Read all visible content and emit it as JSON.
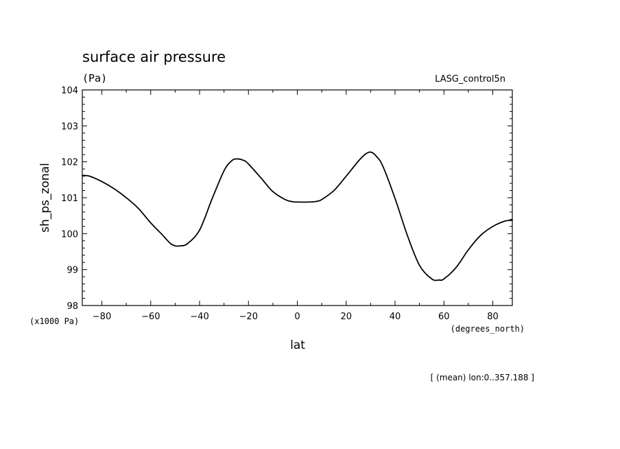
{
  "chart_data": {
    "type": "line",
    "title": "surface air pressure",
    "units": "(Pa)",
    "dataset": "LASG_control5n",
    "xlabel": "lat",
    "ylabel": "sh_ps_zonal",
    "y_scale_note": "(x1000 Pa)",
    "x_unit_note": "(degrees_north)",
    "footnote": "[ (mean) lon:0..357.188 ]",
    "xlim": [
      -88,
      88
    ],
    "ylim": [
      98,
      104
    ],
    "x_ticks": [
      -80,
      -60,
      -40,
      -20,
      0,
      20,
      40,
      60,
      80
    ],
    "y_ticks": [
      98,
      99,
      100,
      101,
      102,
      103,
      104
    ],
    "grid": false,
    "series": [
      {
        "x": [
          -88,
          -85,
          -80,
          -75,
          -70,
          -65,
          -60,
          -55,
          -52,
          -50,
          -48,
          -45,
          -40,
          -35,
          -30,
          -27,
          -25,
          -22,
          -20,
          -15,
          -10,
          -5,
          -2,
          0,
          5,
          8,
          10,
          15,
          20,
          25,
          28,
          30,
          32,
          35,
          40,
          45,
          50,
          55,
          58,
          60,
          65,
          70,
          75,
          80,
          85,
          88
        ],
        "y": [
          101.62,
          101.6,
          101.45,
          101.25,
          101.0,
          100.7,
          100.3,
          99.95,
          99.73,
          99.66,
          99.66,
          99.72,
          100.1,
          100.95,
          101.75,
          102.02,
          102.08,
          102.04,
          101.94,
          101.56,
          101.17,
          100.95,
          100.89,
          100.88,
          100.88,
          100.9,
          100.95,
          101.2,
          101.6,
          102.02,
          102.22,
          102.27,
          102.18,
          101.88,
          100.98,
          99.96,
          99.12,
          98.74,
          98.71,
          98.74,
          99.06,
          99.55,
          99.95,
          100.2,
          100.35,
          100.37
        ]
      }
    ]
  }
}
